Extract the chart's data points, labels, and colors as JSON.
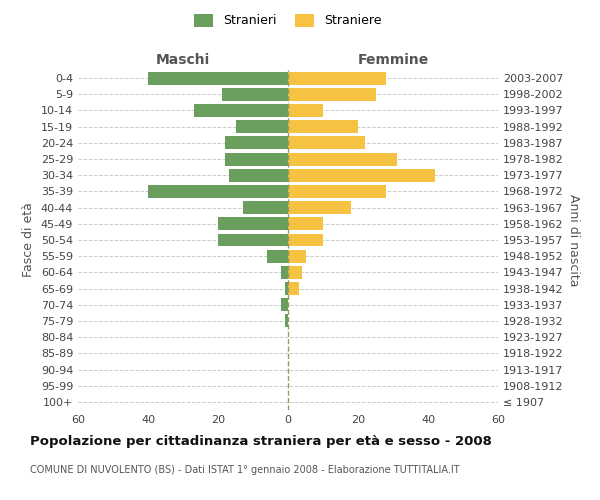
{
  "age_groups": [
    "100+",
    "95-99",
    "90-94",
    "85-89",
    "80-84",
    "75-79",
    "70-74",
    "65-69",
    "60-64",
    "55-59",
    "50-54",
    "45-49",
    "40-44",
    "35-39",
    "30-34",
    "25-29",
    "20-24",
    "15-19",
    "10-14",
    "5-9",
    "0-4"
  ],
  "birth_years": [
    "≤ 1907",
    "1908-1912",
    "1913-1917",
    "1918-1922",
    "1923-1927",
    "1928-1932",
    "1933-1937",
    "1938-1942",
    "1943-1947",
    "1948-1952",
    "1953-1957",
    "1958-1962",
    "1963-1967",
    "1968-1972",
    "1973-1977",
    "1978-1982",
    "1983-1987",
    "1988-1992",
    "1993-1997",
    "1998-2002",
    "2003-2007"
  ],
  "males": [
    0,
    0,
    0,
    0,
    0,
    1,
    2,
    1,
    2,
    6,
    20,
    20,
    13,
    40,
    17,
    18,
    18,
    15,
    27,
    19,
    40
  ],
  "females": [
    0,
    0,
    0,
    0,
    0,
    0,
    0,
    3,
    4,
    5,
    10,
    10,
    18,
    28,
    42,
    31,
    22,
    20,
    10,
    25,
    28
  ],
  "male_color": "#6a9e5c",
  "female_color": "#f5c242",
  "background_color": "#ffffff",
  "grid_color": "#cccccc",
  "title": "Popolazione per cittadinanza straniera per età e sesso - 2008",
  "subtitle": "COMUNE DI NUVOLENTO (BS) - Dati ISTAT 1° gennaio 2008 - Elaborazione TUTTITALIA.IT",
  "label_maschi": "Maschi",
  "label_femmine": "Femmine",
  "ylabel_left": "Fasce di età",
  "ylabel_right": "Anni di nascita",
  "legend_males": "Stranieri",
  "legend_females": "Straniere",
  "xlim": 60,
  "bar_height": 0.8
}
